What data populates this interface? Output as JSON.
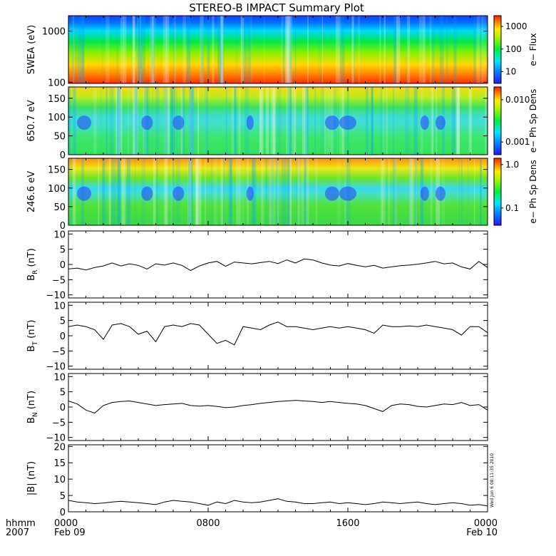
{
  "title": "STEREO-B IMPACT Summary Plot",
  "timestamp": "Wed Jun 6 08:11:35 2010",
  "time_axis": {
    "labels_top": [
      "0000",
      "0800",
      "1600",
      "0000"
    ],
    "labels_bottom": [
      "Feb 09",
      "",
      "",
      "Feb 10"
    ],
    "prefix_top": "hhmm",
    "prefix_bottom": "2007",
    "range_hours": [
      0,
      24
    ]
  },
  "chart_data": [
    {
      "type": "heatmap",
      "id": "swea",
      "ylabel": "SWEA (eV)",
      "ylog": true,
      "ylim": [
        95,
        2000
      ],
      "yticks": [
        100,
        1000
      ],
      "yticklabels": [
        "100",
        "1000"
      ],
      "colorbar": {
        "label": "e− Flux",
        "log": true,
        "range": [
          3,
          3000
        ],
        "ticks": [
          10,
          100,
          1000
        ],
        "ticklabels": [
          "10",
          "100",
          "1000"
        ]
      }
    },
    {
      "type": "heatmap",
      "id": "pad650",
      "ylabel": "650.7 eV",
      "ylim": [
        0,
        180
      ],
      "yticks": [
        0,
        50,
        100,
        150
      ],
      "yticklabels": [
        "0",
        "50",
        "100",
        "150"
      ],
      "colorbar": {
        "label": "e− Ph Sp Dens",
        "log": true,
        "range": [
          0.0005,
          0.02
        ],
        "ticks": [
          0.001,
          0.01
        ],
        "ticklabels": [
          "0.001",
          "0.010"
        ]
      }
    },
    {
      "type": "heatmap",
      "id": "pad246",
      "ylabel": "246.6 eV",
      "ylim": [
        0,
        180
      ],
      "yticks": [
        0,
        50,
        100,
        150
      ],
      "yticklabels": [
        "0",
        "50",
        "100",
        "150"
      ],
      "colorbar": {
        "label": "e− Ph Sp Dens",
        "log": true,
        "range": [
          0.04,
          1.4
        ],
        "ticks": [
          0.1,
          1.0
        ],
        "ticklabels": [
          "0.1",
          "1.0"
        ]
      }
    },
    {
      "type": "line",
      "id": "br",
      "ylabel_main": "B",
      "ylabel_sub": "R",
      "ylabel_unit": " (nT)",
      "ylim": [
        -11,
        11
      ],
      "yticks": [
        -10,
        -5,
        0,
        5,
        10
      ],
      "yticklabels": [
        "−10",
        "−5",
        "0",
        "5",
        "10"
      ],
      "x": [
        0,
        0.5,
        1,
        1.5,
        2,
        2.5,
        3,
        3.5,
        4,
        4.5,
        5,
        5.5,
        6,
        6.5,
        7,
        7.5,
        8,
        8.5,
        9,
        9.5,
        10,
        10.5,
        11,
        11.5,
        12,
        12.5,
        13,
        13.5,
        14,
        14.5,
        15,
        15.5,
        16,
        16.5,
        17,
        17.5,
        18,
        18.5,
        19,
        19.5,
        20,
        20.5,
        21,
        21.5,
        22,
        22.5,
        23,
        23.5,
        24
      ],
      "y": [
        -1.5,
        -1.2,
        -1.8,
        -1.0,
        -0.5,
        0.5,
        -0.5,
        0.2,
        -0.3,
        -1.5,
        0.2,
        -0.2,
        0.5,
        -0.3,
        -2.0,
        -0.5,
        0.5,
        1.0,
        -0.6,
        0.8,
        0.5,
        0.2,
        0.6,
        1.0,
        0.3,
        1.5,
        0.5,
        1.8,
        1.5,
        0.5,
        -0.2,
        -0.5,
        0.3,
        -0.3,
        -0.8,
        -0.3,
        -1.2,
        -0.8,
        -0.4,
        -0.2,
        0.1,
        0.5,
        1.0,
        0.2,
        0.5,
        -0.8,
        -1.5,
        1.0,
        -1.0
      ]
    },
    {
      "type": "line",
      "id": "bt",
      "ylabel_main": "B",
      "ylabel_sub": "T",
      "ylabel_unit": " (nT)",
      "ylim": [
        -11,
        11
      ],
      "yticks": [
        -10,
        -5,
        0,
        5,
        10
      ],
      "yticklabels": [
        "−10",
        "−5",
        "0",
        "5",
        "10"
      ],
      "x": [
        0,
        0.5,
        1,
        1.5,
        2,
        2.5,
        3,
        3.5,
        4,
        4.5,
        5,
        5.5,
        6,
        6.5,
        7,
        7.5,
        8,
        8.5,
        9,
        9.5,
        10,
        10.5,
        11,
        11.5,
        12,
        12.5,
        13,
        13.5,
        14,
        14.5,
        15,
        15.5,
        16,
        16.5,
        17,
        17.5,
        18,
        18.5,
        19,
        19.5,
        20,
        20.5,
        21,
        21.5,
        22,
        22.5,
        23,
        23.5,
        24
      ],
      "y": [
        3.0,
        3.5,
        3.0,
        2.0,
        -1.2,
        3.5,
        4.0,
        3.0,
        0.5,
        1.5,
        -2.0,
        3.0,
        3.5,
        3.0,
        4.0,
        3.5,
        0.5,
        -2.5,
        -1.5,
        -3.0,
        3.0,
        2.5,
        2.0,
        3.5,
        4.5,
        3.0,
        3.0,
        2.5,
        2.0,
        2.5,
        3.0,
        2.5,
        3.0,
        2.5,
        2.0,
        0.8,
        3.5,
        3.0,
        3.0,
        3.2,
        3.0,
        3.5,
        3.0,
        2.5,
        2.0,
        0.2,
        3.0,
        3.0,
        1.0
      ]
    },
    {
      "type": "line",
      "id": "bn",
      "ylabel_main": "B",
      "ylabel_sub": "N",
      "ylabel_unit": " (nT)",
      "ylim": [
        -11,
        11
      ],
      "yticks": [
        -10,
        -5,
        0,
        5,
        10
      ],
      "yticklabels": [
        "−10",
        "−5",
        "0",
        "5",
        "10"
      ],
      "x": [
        0,
        0.5,
        1,
        1.5,
        2,
        2.5,
        3,
        3.5,
        4,
        4.5,
        5,
        5.5,
        6,
        6.5,
        7,
        7.5,
        8,
        8.5,
        9,
        9.5,
        10,
        10.5,
        11,
        11.5,
        12,
        12.5,
        13,
        13.5,
        14,
        14.5,
        15,
        15.5,
        16,
        16.5,
        17,
        17.5,
        18,
        18.5,
        19,
        19.5,
        20,
        20.5,
        21,
        21.5,
        22,
        22.5,
        23,
        23.5,
        24
      ],
      "y": [
        2.0,
        1.0,
        -1.0,
        -2.0,
        0.5,
        1.5,
        1.8,
        2.0,
        1.5,
        1.0,
        0.5,
        0.8,
        1.0,
        1.2,
        0.5,
        0.3,
        0.5,
        0.2,
        -0.2,
        0.0,
        0.5,
        0.8,
        1.2,
        1.5,
        1.8,
        2.0,
        2.2,
        2.0,
        1.8,
        1.5,
        1.8,
        1.5,
        1.2,
        1.0,
        0.5,
        -0.5,
        -1.5,
        0.5,
        1.0,
        0.8,
        0.2,
        0.0,
        0.5,
        1.0,
        0.8,
        1.5,
        0.5,
        0.8,
        -1.0
      ]
    },
    {
      "type": "line",
      "id": "bmag",
      "ylabel_main": "|B|",
      "ylabel_sub": "",
      "ylabel_unit": " (nT)",
      "ylim": [
        0,
        20.5
      ],
      "yticks": [
        0,
        5,
        10,
        15,
        20
      ],
      "yticklabels": [
        "0",
        "5",
        "10",
        "15",
        "20"
      ],
      "x": [
        0,
        0.5,
        1,
        1.5,
        2,
        2.5,
        3,
        3.5,
        4,
        4.5,
        5,
        5.5,
        6,
        6.5,
        7,
        7.5,
        8,
        8.5,
        9,
        9.5,
        10,
        10.5,
        11,
        11.5,
        12,
        12.5,
        13,
        13.5,
        14,
        14.5,
        15,
        15.5,
        16,
        16.5,
        17,
        17.5,
        18,
        18.5,
        19,
        19.5,
        20,
        20.5,
        21,
        21.5,
        22,
        22.5,
        23,
        23.5,
        24
      ],
      "y": [
        3.5,
        3.0,
        2.8,
        2.5,
        2.7,
        3.0,
        3.2,
        3.0,
        2.8,
        2.5,
        2.2,
        3.0,
        3.5,
        3.2,
        3.0,
        2.5,
        2.0,
        3.0,
        2.5,
        3.5,
        3.0,
        2.8,
        3.0,
        3.5,
        4.0,
        3.2,
        3.0,
        2.5,
        2.5,
        2.8,
        3.0,
        2.5,
        2.8,
        2.5,
        2.2,
        2.5,
        3.0,
        2.8,
        2.5,
        2.8,
        3.0,
        2.5,
        2.2,
        2.5,
        2.8,
        2.5,
        2.0,
        2.2,
        1.8
      ]
    }
  ]
}
